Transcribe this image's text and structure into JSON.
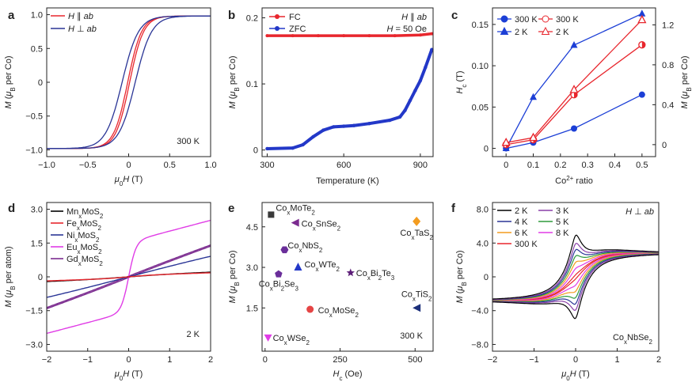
{
  "chart_data": [
    {
      "panel": "a",
      "type": "line",
      "xlabel": "μ0H (T)",
      "ylabel": "M (μB per Co)",
      "xlim": [
        -1.0,
        1.0
      ],
      "ylim": [
        -1.1,
        1.1
      ],
      "xticks": [
        "−1.0",
        "−0.5",
        "0",
        "0.5",
        "1.0"
      ],
      "yticks": [
        "−1.0",
        "−0.5",
        "0",
        "0.5",
        "1.0"
      ],
      "annotation": "300 K",
      "series": [
        {
          "name": "H ∥ ab",
          "color": "#e8262d",
          "shape": "hysteresis",
          "Ms": 0.98,
          "Hc": 0.012,
          "w": 0.17
        },
        {
          "name": "H ⊥ ab",
          "color": "#2a3596",
          "shape": "hysteresis",
          "Ms": 0.98,
          "Hc": 0.08,
          "w": 0.2
        }
      ]
    },
    {
      "panel": "b",
      "type": "scatter",
      "xlabel": "Temperature (K)",
      "ylabel": "M (μB per Co)",
      "xlim": [
        280,
        950
      ],
      "ylim": [
        -0.01,
        0.215
      ],
      "xticks": [
        "300",
        "600",
        "900"
      ],
      "yticks": [
        "0",
        "0.1",
        "0.2"
      ],
      "annotation_lines": [
        "H ∥ ab",
        "H = 50 Oe"
      ],
      "series": [
        {
          "name": "FC",
          "color": "#e8262d",
          "x": [
            300,
            400,
            500,
            600,
            700,
            800,
            900,
            945
          ],
          "y": [
            0.173,
            0.173,
            0.173,
            0.173,
            0.173,
            0.173,
            0.174,
            0.176
          ]
        },
        {
          "name": "ZFC",
          "color": "#2338c8",
          "x": [
            300,
            400,
            440,
            480,
            520,
            560,
            600,
            640,
            700,
            780,
            820,
            840,
            860,
            880,
            900,
            920,
            945
          ],
          "y": [
            0.002,
            0.003,
            0.008,
            0.02,
            0.03,
            0.035,
            0.036,
            0.037,
            0.04,
            0.045,
            0.05,
            0.06,
            0.075,
            0.09,
            0.105,
            0.125,
            0.152
          ]
        }
      ]
    },
    {
      "panel": "c",
      "type": "line",
      "xlabel": "Co2+ ratio",
      "ylabel": "Hc (T)",
      "ylabel_right": "M (μB per Co)",
      "xlim": [
        -0.05,
        0.55
      ],
      "ylim": [
        -0.01,
        0.17
      ],
      "ylim_right": [
        -0.12,
        1.37
      ],
      "xticks": [
        "0",
        "0.1",
        "0.2",
        "0.3",
        "0.4",
        "0.5"
      ],
      "yticks": [
        "0",
        "0.05",
        "0.10",
        "0.15"
      ],
      "yticks_right": [
        "0",
        "0.4",
        "0.8",
        "1.2"
      ],
      "categories": [
        0,
        0.1,
        0.25,
        0.5
      ],
      "series": [
        {
          "name": "300 K",
          "axis": "left",
          "marker": "circle",
          "color": "#1c3fd6",
          "values": [
            0.0,
            0.007,
            0.024,
            0.065
          ]
        },
        {
          "name": "2 K",
          "axis": "left",
          "marker": "triangle",
          "color": "#1c3fd6",
          "values": [
            0.0,
            0.062,
            0.125,
            0.163
          ]
        },
        {
          "name": "300 K",
          "axis": "right",
          "marker": "circle",
          "color": "#e8262d",
          "values": [
            0.0,
            0.05,
            0.5,
            1.0
          ]
        },
        {
          "name": "2 K",
          "axis": "right",
          "marker": "triangle",
          "color": "#e8262d",
          "values": [
            0.02,
            0.07,
            0.55,
            1.25
          ]
        }
      ]
    },
    {
      "panel": "d",
      "type": "line",
      "xlabel": "μ0H (T)",
      "ylabel": "M (μB per atom)",
      "xlim": [
        -2,
        2
      ],
      "ylim": [
        -3.3,
        3.3
      ],
      "xticks": [
        "−2",
        "−1",
        "0",
        "1",
        "2"
      ],
      "yticks": [
        "−3.0",
        "−1.5",
        "0",
        "1.5",
        "3.0"
      ],
      "annotation": "2 K",
      "series": [
        {
          "name": "MnxMoS2",
          "color": "#000000",
          "a": 0.05,
          "b": 0.9,
          "c": 0.08,
          "Hc": 0.0
        },
        {
          "name": "FexMoS2",
          "color": "#e8262d",
          "a": 0.06,
          "b": 0.6,
          "c": 0.06,
          "Hc": 0.0
        },
        {
          "name": "NixMoS2",
          "color": "#2a3596",
          "a": 0.15,
          "b": 2.0,
          "c": 0.4,
          "Hc": 0.0
        },
        {
          "name": "EuxMoS2",
          "color": "#e03ce6",
          "a": 1.55,
          "b": 0.18,
          "c": 0.48,
          "Hc": 0.0
        },
        {
          "name": "GdxMoS2",
          "color": "#7b2b8f",
          "a": 0.05,
          "b": 0.9,
          "c": 0.67,
          "Hc": 0.04
        }
      ]
    },
    {
      "panel": "e",
      "type": "scatter",
      "xlabel": "Hc (Oe)",
      "ylabel": "M (μB per Co)",
      "xlim": [
        -10,
        560
      ],
      "ylim": [
        -0.1,
        5.4
      ],
      "xticks": [
        "0",
        "250",
        "500"
      ],
      "yticks": [
        "1.5",
        "3.0",
        "4.5"
      ],
      "annotation": "300 K",
      "points": [
        {
          "label": "CoxMoTe2",
          "x": 20,
          "y": 4.95,
          "color": "#3a3a3a",
          "marker": "square"
        },
        {
          "label": "CoxSnSe2",
          "x": 100,
          "y": 4.65,
          "color": "#7b2b8f",
          "marker": "triangle-left"
        },
        {
          "label": "CoxTaS2",
          "x": 505,
          "y": 4.7,
          "color": "#f39c1f",
          "marker": "diamond"
        },
        {
          "label": "CoxNbS2",
          "x": 65,
          "y": 3.65,
          "color": "#6a2e9a",
          "marker": "hexagon"
        },
        {
          "label": "CoxWTe2",
          "x": 110,
          "y": 3.0,
          "color": "#2338c8",
          "marker": "triangle"
        },
        {
          "label": "CoxBi2Te3",
          "x": 285,
          "y": 2.8,
          "color": "#5c1e78",
          "marker": "star"
        },
        {
          "label": "CoxBi2Se3",
          "x": 45,
          "y": 2.75,
          "color": "#6a2e9a",
          "marker": "pentagon"
        },
        {
          "label": "CoxTiS2",
          "x": 505,
          "y": 1.5,
          "color": "#1c2f7a",
          "marker": "triangle-left"
        },
        {
          "label": "CoxMoSe2",
          "x": 150,
          "y": 1.45,
          "color": "#e54545",
          "marker": "circle"
        },
        {
          "label": "CoxWSe2",
          "x": 10,
          "y": 0.4,
          "color": "#e03ce6",
          "marker": "triangle-down"
        }
      ]
    },
    {
      "panel": "f",
      "type": "line",
      "xlabel": "μ0H (T)",
      "ylabel": "M (μB per Co)",
      "xlim": [
        -2,
        2
      ],
      "ylim": [
        -8.8,
        8.8
      ],
      "xticks": [
        "−2",
        "−1",
        "0",
        "1",
        "2"
      ],
      "yticks": [
        "−8.0",
        "−4.0",
        "0",
        "4.0",
        "8.0"
      ],
      "annotation": "H ⊥ ab",
      "annotation_sample": "CoxNbSe2",
      "series": [
        {
          "name": "2 K",
          "color": "#000000",
          "k": 1.0
        },
        {
          "name": "3 K",
          "color": "#8a3fa8",
          "k": 0.8
        },
        {
          "name": "4 K",
          "color": "#2a3596",
          "k": 0.65
        },
        {
          "name": "5 K",
          "color": "#2e9a3c",
          "k": 0.5
        },
        {
          "name": "6 K",
          "color": "#f39c1f",
          "k": 0.35
        },
        {
          "name": "8 K",
          "color": "#e03ce6",
          "k": 0.2
        },
        {
          "name": "300 K",
          "color": "#e8262d",
          "k": 0.05
        }
      ]
    }
  ]
}
